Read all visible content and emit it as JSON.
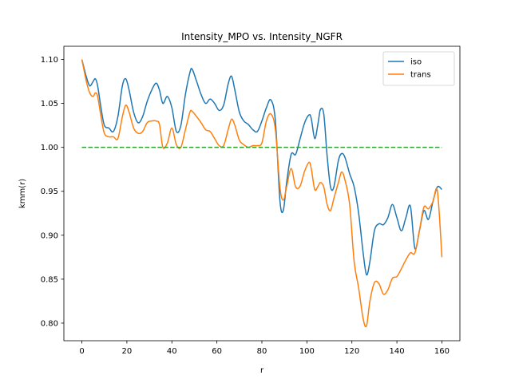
{
  "chart_data": {
    "type": "line",
    "title": "Intensity_MPO vs. Intensity_NGFR",
    "xlabel": "r",
    "ylabel": "kmm(r)",
    "xlim": [
      -8,
      168
    ],
    "ylim": [
      0.78,
      1.115
    ],
    "xticks": [
      0,
      20,
      40,
      60,
      80,
      100,
      120,
      140,
      160
    ],
    "xtick_labels": [
      "0",
      "20",
      "40",
      "60",
      "80",
      "100",
      "120",
      "140",
      "160"
    ],
    "yticks": [
      0.8,
      0.85,
      0.9,
      0.95,
      1.0,
      1.05,
      1.1
    ],
    "ytick_labels": [
      "0.80",
      "0.85",
      "0.90",
      "0.95",
      "1.00",
      "1.05",
      "1.10"
    ],
    "grid": false,
    "legend_position": "top-right",
    "series": [
      {
        "name": "iso",
        "color": "#1f77b4",
        "style": "solid",
        "x": [
          0,
          2,
          3.5,
          5,
          6,
          7,
          8.5,
          10,
          12,
          14,
          16,
          18,
          19.5,
          21,
          23,
          25,
          27,
          29,
          31,
          33,
          34.5,
          36,
          38,
          40,
          42,
          44,
          46,
          48,
          49,
          51,
          53,
          55,
          57,
          59,
          61,
          63,
          65,
          66.5,
          68,
          70,
          72,
          74,
          76,
          78,
          80,
          82,
          84,
          86,
          88,
          89.5,
          91,
          93,
          95,
          97,
          99,
          101,
          102,
          103.5,
          105,
          106,
          107.5,
          109,
          110.5,
          112,
          114,
          115.5,
          117,
          119,
          121,
          123,
          125,
          126.5,
          128,
          130,
          132,
          134,
          136,
          138,
          140,
          142,
          144,
          146,
          148,
          150,
          152,
          154,
          156,
          158,
          160
        ],
        "y": [
          1.1,
          1.08,
          1.07,
          1.075,
          1.078,
          1.07,
          1.045,
          1.025,
          1.022,
          1.018,
          1.035,
          1.07,
          1.078,
          1.065,
          1.04,
          1.028,
          1.035,
          1.052,
          1.065,
          1.073,
          1.065,
          1.05,
          1.058,
          1.045,
          1.018,
          1.025,
          1.06,
          1.085,
          1.089,
          1.075,
          1.06,
          1.05,
          1.055,
          1.05,
          1.042,
          1.048,
          1.072,
          1.081,
          1.065,
          1.04,
          1.03,
          1.026,
          1.02,
          1.018,
          1.03,
          1.045,
          1.054,
          1.03,
          0.94,
          0.928,
          0.96,
          0.992,
          0.992,
          1.01,
          1.028,
          1.037,
          1.032,
          1.01,
          1.028,
          1.043,
          1.038,
          0.99,
          0.955,
          0.955,
          0.985,
          0.993,
          0.988,
          0.97,
          0.955,
          0.925,
          0.88,
          0.855,
          0.87,
          0.905,
          0.913,
          0.912,
          0.92,
          0.935,
          0.92,
          0.905,
          0.92,
          0.933,
          0.885,
          0.905,
          0.928,
          0.918,
          0.938,
          0.955,
          0.952
        ]
      },
      {
        "name": "trans",
        "color": "#ff7f0e",
        "style": "solid",
        "x": [
          0,
          2,
          3.5,
          5,
          6,
          7,
          8.5,
          10,
          12,
          14,
          16,
          18,
          19.5,
          21,
          23,
          25,
          27,
          29,
          31,
          33,
          34.5,
          36,
          38,
          40,
          42,
          44,
          46,
          48,
          49,
          51,
          53,
          55,
          57,
          59,
          61,
          63,
          65,
          66.5,
          68,
          70,
          72,
          74,
          76,
          78,
          80,
          82,
          84,
          86,
          88,
          89.5,
          91,
          93,
          95,
          97,
          99,
          101,
          102,
          103.5,
          105,
          106,
          107.5,
          109,
          110.5,
          112,
          114,
          115.5,
          117,
          119,
          121,
          123,
          125,
          126.5,
          128,
          130,
          132,
          134,
          136,
          138,
          140,
          142,
          144,
          146,
          148,
          150,
          152,
          154,
          156,
          158,
          160
        ],
        "y": [
          1.1,
          1.075,
          1.062,
          1.058,
          1.062,
          1.058,
          1.035,
          1.016,
          1.012,
          1.012,
          1.01,
          1.035,
          1.048,
          1.04,
          1.022,
          1.016,
          1.018,
          1.028,
          1.03,
          1.03,
          1.026,
          1.0,
          1.005,
          1.022,
          1.003,
          1.0,
          1.02,
          1.04,
          1.041,
          1.035,
          1.028,
          1.02,
          1.018,
          1.01,
          1.002,
          1.002,
          1.02,
          1.032,
          1.025,
          1.008,
          1.003,
          1.0,
          1.002,
          1.002,
          1.005,
          1.03,
          1.038,
          1.02,
          0.955,
          0.94,
          0.955,
          0.976,
          0.955,
          0.956,
          0.973,
          0.983,
          0.975,
          0.952,
          0.956,
          0.96,
          0.955,
          0.935,
          0.928,
          0.942,
          0.96,
          0.972,
          0.962,
          0.935,
          0.87,
          0.84,
          0.805,
          0.797,
          0.825,
          0.846,
          0.845,
          0.833,
          0.838,
          0.851,
          0.853,
          0.862,
          0.872,
          0.88,
          0.88,
          0.905,
          0.932,
          0.93,
          0.938,
          0.95,
          0.875
        ]
      },
      {
        "color": "#2ca02c",
        "style": "dashed",
        "x": [
          0,
          160
        ],
        "y": [
          1.0,
          1.0
        ]
      }
    ]
  }
}
